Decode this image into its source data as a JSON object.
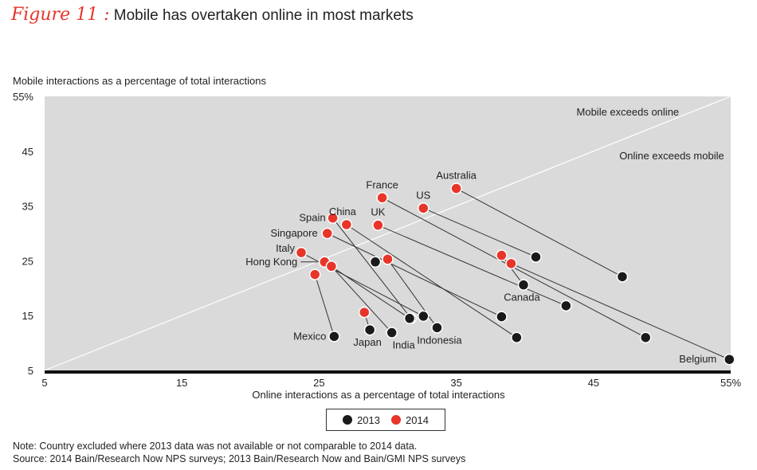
{
  "figure": {
    "label": "Figure 11 :",
    "title": "Mobile has overtaken online in most markets"
  },
  "chart_data": {
    "type": "scatter",
    "title": "Mobile has overtaken online in most markets",
    "xlabel": "Online interactions as a percentage of total interactions",
    "ylabel": "Mobile interactions as a percentage of total interactions",
    "xlim": [
      5,
      55
    ],
    "ylim": [
      5,
      55
    ],
    "x_ticks": [
      "5",
      "15",
      "25",
      "35",
      "45",
      "55%"
    ],
    "y_ticks": [
      "5",
      "15",
      "25",
      "35",
      "45",
      "55%"
    ],
    "x_tick_values": [
      5,
      15,
      25,
      35,
      45,
      55
    ],
    "y_tick_values": [
      5,
      15,
      25,
      35,
      45,
      55
    ],
    "diagonal_labels": {
      "above": "Mobile exceeds online",
      "below": "Online exceeds mobile"
    },
    "colors": {
      "y2013": "#1a1a1a",
      "y2014": "#e8352a",
      "background": "#dadada"
    },
    "legend": [
      "2013",
      "2014"
    ],
    "countries": [
      {
        "name": "Australia",
        "y2014": [
          35.0,
          38.2
        ],
        "y2013": [
          47.1,
          22.1
        ]
      },
      {
        "name": "France",
        "y2014": [
          29.6,
          36.5
        ],
        "y2013": [
          48.8,
          11.0
        ]
      },
      {
        "name": "US",
        "y2014": [
          32.6,
          34.6
        ],
        "y2013": [
          40.8,
          25.7
        ]
      },
      {
        "name": "China",
        "y2014": [
          27.0,
          31.6
        ],
        "y2013": [
          39.4,
          11.0
        ]
      },
      {
        "name": "Spain",
        "y2014": [
          26.0,
          32.8
        ],
        "y2013": [
          31.7,
          14.5
        ]
      },
      {
        "name": "UK",
        "y2014": [
          29.3,
          31.5
        ],
        "y2013": [
          43.0,
          16.8
        ]
      },
      {
        "name": "Singapore",
        "y2014": [
          25.6,
          30.0
        ],
        "y2013": [
          38.3,
          14.8
        ]
      },
      {
        "name": "Italy",
        "y2014": [
          23.7,
          26.5
        ],
        "y2013": [
          32.6,
          14.9
        ]
      },
      {
        "name": "Hong Kong",
        "y2014": [
          25.4,
          24.8
        ],
        "y2013": [
          31.6,
          14.5
        ]
      },
      {
        "name": "Mexico",
        "y2014": [
          24.7,
          22.5
        ],
        "y2013": [
          26.1,
          11.2
        ]
      },
      {
        "name": "Japan",
        "y2014": [
          28.3,
          15.6
        ],
        "y2013": [
          28.7,
          12.4
        ]
      },
      {
        "name": "India",
        "y2014": [
          25.9,
          24.0
        ],
        "y2013": [
          30.3,
          11.9
        ]
      },
      {
        "name": "Indonesia",
        "y2014": [
          30.0,
          25.3
        ],
        "y2013": [
          33.6,
          12.8
        ]
      },
      {
        "name": "Canada",
        "y2014": [
          38.3,
          26.0
        ],
        "y2013": [
          39.9,
          20.6
        ]
      },
      {
        "name": "Belgium",
        "y2014": [
          39.0,
          24.5
        ],
        "y2013": [
          54.9,
          7.0
        ]
      }
    ],
    "unlabeled_2013": [
      [
        29.1,
        24.8
      ]
    ]
  },
  "legend_labels": {
    "y2013": "2013",
    "y2014": "2014"
  },
  "notes": {
    "note": "Note: Country excluded where 2013 data was not available or not comparable to 2014 data.",
    "source": "Source: 2014 Bain/Research Now NPS surveys; 2013 Bain/Research Now and Bain/GMI NPS surveys"
  }
}
